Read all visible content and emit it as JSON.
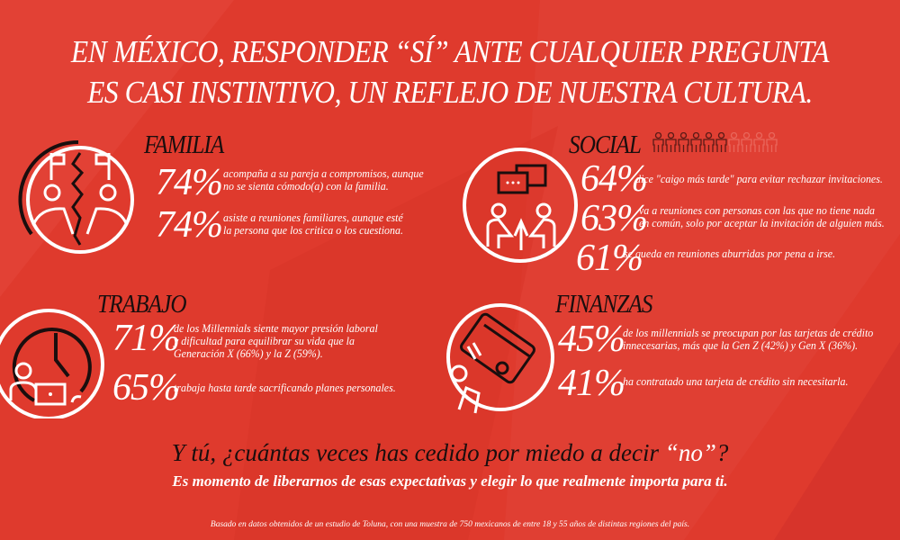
{
  "title": {
    "line1": "EN MÉXICO, RESPONDER “SÍ” ANTE CUALQUIER PREGUNTA",
    "line2": "ES CASI INSTINTIVO, UN REFLEJO DE NUESTRA CULTURA."
  },
  "sections": {
    "familia": {
      "heading": "FAMILIA",
      "stats": [
        {
          "pct": "74%",
          "text1": "acompaña a su pareja a  compromisos, aunque",
          "text2": "no se sienta cómodo(a) con la familia."
        },
        {
          "pct": "74%",
          "text1": "asiste a reuniones familiares, aunque esté",
          "text2": "la persona que los critica o los cuestiona."
        }
      ]
    },
    "social": {
      "heading": "SOCIAL",
      "people_filled": 6,
      "people_total": 10,
      "stats": [
        {
          "pct": "64%",
          "text1": "dice \"caigo más tarde\" para evitar rechazar invitaciones."
        },
        {
          "pct": "63%",
          "text1": "va a reuniones con personas con las que no tiene nada",
          "text2": "en común, solo por aceptar la invitación de alguien más."
        },
        {
          "pct": "61%",
          "text1": "se queda en reuniones aburridas por pena a irse."
        }
      ]
    },
    "trabajo": {
      "heading": "TRABAJO",
      "stats": [
        {
          "pct": "71%",
          "text1": "de los Millennials siente mayor presión laboral",
          "text2": "y dificultad para equilibrar su vida que la",
          "text3": "Generación X (66%) y la Z (59%)."
        },
        {
          "pct": "65%",
          "text1": "trabaja hasta tarde sacrificando planes personales."
        }
      ]
    },
    "finanzas": {
      "heading": "FINANZAS",
      "stats": [
        {
          "pct": "45%",
          "text1": "de los millennials se preocupan por las tarjetas de crédito",
          "text2": "innecesarias, más que la Gen Z (42%) y Gen X (36%)."
        },
        {
          "pct": "41%",
          "text1": "ha contratado una tarjeta de crédito sin necesitarla."
        }
      ]
    }
  },
  "closing": {
    "question_part1": "Y tú, ¿cuántas veces has cedido por miedo a decir ",
    "question_part2": "“no”",
    "question_part3": "?",
    "subtitle": "Es momento de liberarnos de esas expectativas y elegir lo que realmente importa para ti.",
    "footnote": "Basado en datos obtenidos de un estudio de Toluna, con una muestra de 750 mexicanos de entre 18 y 55 años de distintas regiones del país."
  },
  "colors": {
    "background": "#df3a2d",
    "dark": "#1a0e0e",
    "text": "#ffffff"
  }
}
